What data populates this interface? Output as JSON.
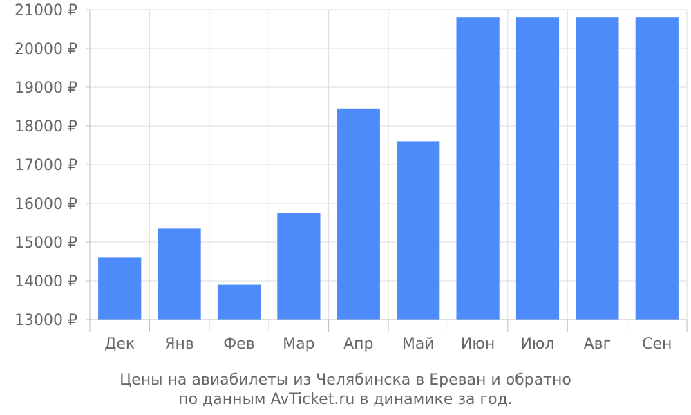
{
  "chart_data": {
    "type": "bar",
    "categories": [
      "Дек",
      "Янв",
      "Фев",
      "Мар",
      "Апр",
      "Май",
      "Июн",
      "Июл",
      "Авг",
      "Сен"
    ],
    "values": [
      14600,
      15350,
      13900,
      15750,
      18450,
      17600,
      20800,
      20800,
      20800,
      20800
    ],
    "ylim": [
      13000,
      21000
    ],
    "yticks": [
      13000,
      14000,
      15000,
      16000,
      17000,
      18000,
      19000,
      20000,
      21000
    ],
    "ytick_labels": [
      "13000 ₽",
      "14000 ₽",
      "15000 ₽",
      "16000 ₽",
      "17000 ₽",
      "18000 ₽",
      "19000 ₽",
      "20000 ₽",
      "21000 ₽"
    ],
    "grid": true,
    "bar_color": "#4d8bfa",
    "caption": [
      "Цены на авиабилеты из Челябинска в Ереван и обратно",
      "по данным AvTicket.ru в динамике за год."
    ]
  }
}
